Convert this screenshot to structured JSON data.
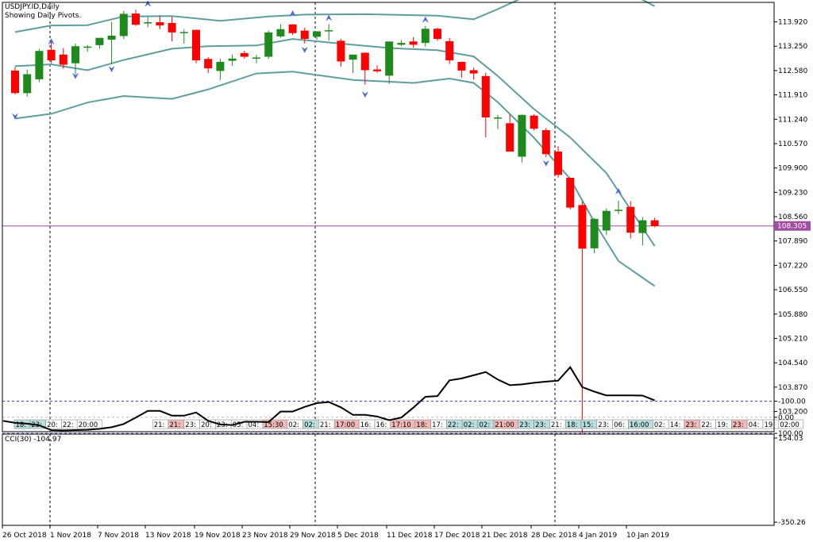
{
  "chart_title": "USDJPY.ID,Daily",
  "chart_subtitle": "Showing Daily Pivots.",
  "colors": {
    "up": "#1e8a1e",
    "down": "#ff0000",
    "band": "#5f9ea0",
    "price_line": "#a04ca0",
    "cci_level": "#3333cc",
    "fractal": "#4169e1"
  },
  "chart_data": [
    {
      "type": "candlestick",
      "symbol": "USDJPY.ID",
      "timeframe": "Daily",
      "ylim": [
        102.6,
        114.4
      ],
      "y_ticks": [
        "113.920",
        "113.250",
        "112.580",
        "111.910",
        "111.240",
        "110.570",
        "109.900",
        "109.230",
        "108.560",
        "107.890",
        "107.220",
        "106.550",
        "105.880",
        "105.210",
        "104.540",
        "103.870",
        "103.200"
      ],
      "current_price": "108.305",
      "x_labels": [
        "26 Oct 2018",
        "1 Nov 2018",
        "7 Nov 2018",
        "13 Nov 2018",
        "19 Nov 2018",
        "23 Nov 2018",
        "29 Nov 2018",
        "5 Dec 2018",
        "11 Dec 2018",
        "17 Dec 2018",
        "21 Dec 2018",
        "28 Dec 2018",
        "4 Jan 2019",
        "10 Jan 2019"
      ],
      "candles": [
        {
          "o": 112.58,
          "h": 112.68,
          "l": 111.92,
          "c": 111.96
        },
        {
          "o": 111.96,
          "h": 112.61,
          "l": 111.86,
          "c": 112.48
        },
        {
          "o": 112.34,
          "h": 113.18,
          "l": 112.26,
          "c": 113.12
        },
        {
          "o": 113.15,
          "h": 113.36,
          "l": 112.78,
          "c": 112.86
        },
        {
          "o": 113.02,
          "h": 113.2,
          "l": 112.63,
          "c": 112.74
        },
        {
          "o": 112.78,
          "h": 113.32,
          "l": 112.48,
          "c": 113.25
        },
        {
          "o": 113.22,
          "h": 113.28,
          "l": 113.1,
          "c": 113.24
        },
        {
          "o": 113.28,
          "h": 113.48,
          "l": 113.18,
          "c": 113.48
        },
        {
          "o": 113.43,
          "h": 113.92,
          "l": 112.76,
          "c": 113.54
        },
        {
          "o": 113.53,
          "h": 114.22,
          "l": 113.45,
          "c": 114.14
        },
        {
          "o": 114.15,
          "h": 114.25,
          "l": 113.81,
          "c": 113.84
        },
        {
          "o": 113.91,
          "h": 114.05,
          "l": 113.77,
          "c": 113.91
        },
        {
          "o": 113.91,
          "h": 114.1,
          "l": 113.72,
          "c": 113.82
        },
        {
          "o": 113.89,
          "h": 114.06,
          "l": 113.38,
          "c": 113.63
        },
        {
          "o": 113.64,
          "h": 113.72,
          "l": 113.32,
          "c": 113.64
        },
        {
          "o": 113.7,
          "h": 113.7,
          "l": 112.78,
          "c": 112.86
        },
        {
          "o": 112.9,
          "h": 112.95,
          "l": 112.51,
          "c": 112.64
        },
        {
          "o": 112.57,
          "h": 112.91,
          "l": 112.32,
          "c": 112.82
        },
        {
          "o": 112.85,
          "h": 113.02,
          "l": 112.71,
          "c": 112.91
        },
        {
          "o": 113.06,
          "h": 113.12,
          "l": 112.91,
          "c": 112.96
        },
        {
          "o": 112.94,
          "h": 113.01,
          "l": 112.78,
          "c": 112.94
        },
        {
          "o": 112.96,
          "h": 113.68,
          "l": 112.9,
          "c": 113.63
        },
        {
          "o": 113.52,
          "h": 113.86,
          "l": 113.48,
          "c": 113.72
        },
        {
          "o": 113.85,
          "h": 113.85,
          "l": 113.56,
          "c": 113.61
        },
        {
          "o": 113.68,
          "h": 113.76,
          "l": 113.32,
          "c": 113.45
        },
        {
          "o": 113.51,
          "h": 113.66,
          "l": 113.43,
          "c": 113.66
        },
        {
          "o": 113.69,
          "h": 113.86,
          "l": 113.4,
          "c": 113.69
        },
        {
          "o": 113.4,
          "h": 113.45,
          "l": 112.69,
          "c": 112.83
        },
        {
          "o": 112.88,
          "h": 112.96,
          "l": 112.51,
          "c": 113.02
        },
        {
          "o": 113.07,
          "h": 113.08,
          "l": 112.19,
          "c": 112.59
        },
        {
          "o": 112.61,
          "h": 112.72,
          "l": 112.52,
          "c": 112.56
        },
        {
          "o": 112.44,
          "h": 113.33,
          "l": 112.21,
          "c": 113.38
        },
        {
          "o": 113.29,
          "h": 113.42,
          "l": 113.25,
          "c": 113.34
        },
        {
          "o": 113.38,
          "h": 113.5,
          "l": 113.21,
          "c": 113.29
        },
        {
          "o": 113.34,
          "h": 113.81,
          "l": 113.24,
          "c": 113.73
        },
        {
          "o": 113.73,
          "h": 113.76,
          "l": 113.4,
          "c": 113.45
        },
        {
          "o": 113.39,
          "h": 113.48,
          "l": 112.76,
          "c": 112.86
        },
        {
          "o": 112.82,
          "h": 112.82,
          "l": 112.38,
          "c": 112.58
        },
        {
          "o": 112.59,
          "h": 112.66,
          "l": 112.33,
          "c": 112.5
        },
        {
          "o": 112.43,
          "h": 112.52,
          "l": 110.74,
          "c": 111.29
        },
        {
          "o": 111.29,
          "h": 111.36,
          "l": 110.97,
          "c": 111.29
        },
        {
          "o": 111.13,
          "h": 111.37,
          "l": 110.38,
          "c": 110.35
        },
        {
          "o": 110.21,
          "h": 111.37,
          "l": 110.05,
          "c": 111.36
        },
        {
          "o": 111.34,
          "h": 111.38,
          "l": 110.93,
          "c": 110.98
        },
        {
          "o": 110.94,
          "h": 111.0,
          "l": 110.2,
          "c": 110.28
        },
        {
          "o": 110.35,
          "h": 110.5,
          "l": 109.63,
          "c": 109.71
        },
        {
          "o": 109.63,
          "h": 109.64,
          "l": 108.76,
          "c": 108.81
        },
        {
          "o": 108.88,
          "h": 108.98,
          "l": 102.6,
          "c": 107.68
        },
        {
          "o": 107.69,
          "h": 108.52,
          "l": 107.55,
          "c": 108.5
        },
        {
          "o": 108.18,
          "h": 108.79,
          "l": 108.05,
          "c": 108.72
        },
        {
          "o": 108.75,
          "h": 109.0,
          "l": 108.63,
          "c": 108.75
        },
        {
          "o": 108.83,
          "h": 108.99,
          "l": 107.96,
          "c": 108.12
        },
        {
          "o": 108.11,
          "h": 108.55,
          "l": 107.77,
          "c": 108.46
        },
        {
          "o": 108.46,
          "h": 108.53,
          "l": 108.27,
          "c": 108.3
        }
      ],
      "bollinger": {
        "upper": [
          [
            0,
            113.64
          ],
          [
            3,
            113.82
          ],
          [
            6,
            113.83
          ],
          [
            9,
            114.07
          ],
          [
            13,
            114.08
          ],
          [
            17,
            113.95
          ],
          [
            21,
            114.07
          ],
          [
            24,
            114.12
          ],
          [
            29,
            114.13
          ],
          [
            35,
            114.09
          ],
          [
            38,
            113.99
          ],
          [
            40,
            114.27
          ],
          [
            44,
            114.88
          ],
          [
            50,
            114.88
          ],
          [
            53,
            114.35
          ]
        ],
        "middle": [
          [
            0,
            112.7
          ],
          [
            3,
            112.75
          ],
          [
            6,
            112.59
          ],
          [
            9,
            112.87
          ],
          [
            13,
            113.18
          ],
          [
            16,
            113.25
          ],
          [
            20,
            113.27
          ],
          [
            23,
            113.45
          ],
          [
            27,
            113.32
          ],
          [
            31,
            113.2
          ],
          [
            35,
            113.14
          ],
          [
            38,
            112.97
          ],
          [
            40,
            112.43
          ],
          [
            43,
            111.52
          ],
          [
            46,
            110.74
          ],
          [
            49,
            109.76
          ],
          [
            53,
            107.75
          ]
        ],
        "lower": [
          [
            0,
            111.26
          ],
          [
            3,
            111.39
          ],
          [
            6,
            111.7
          ],
          [
            9,
            111.88
          ],
          [
            13,
            111.8
          ],
          [
            16,
            112.06
          ],
          [
            20,
            112.5
          ],
          [
            23,
            112.55
          ],
          [
            28,
            112.32
          ],
          [
            33,
            112.24
          ],
          [
            36,
            112.36
          ],
          [
            38,
            112.24
          ],
          [
            40,
            111.71
          ],
          [
            43,
            110.73
          ],
          [
            46,
            109.6
          ],
          [
            48,
            108.41
          ],
          [
            50,
            107.34
          ],
          [
            53,
            106.65
          ]
        ]
      },
      "fractals_up": [
        {
          "i": 3,
          "y": 113.38
        },
        {
          "i": 11,
          "y": 114.42
        },
        {
          "i": 23,
          "y": 114.15
        },
        {
          "i": 26,
          "y": 114.03
        },
        {
          "i": 34,
          "y": 113.98
        },
        {
          "i": 50,
          "y": 109.26
        }
      ],
      "fractals_down": [
        {
          "i": 0,
          "y": 111.32
        },
        {
          "i": 5,
          "y": 112.43
        },
        {
          "i": 8,
          "y": 112.62
        },
        {
          "i": 24,
          "y": 113.15
        },
        {
          "i": 29,
          "y": 111.92
        },
        {
          "i": 44,
          "y": 110.03
        }
      ],
      "pivot_times": [
        {
          "label": "18:",
          "hl": "teal"
        },
        {
          "label": "23:",
          "hl": "teal"
        },
        {
          "label": "20:",
          "hl": "none"
        },
        {
          "label": "22:",
          "hl": "none"
        },
        {
          "label": "20:00",
          "hl": "none"
        },
        {
          "label": "21:",
          "hl": "none"
        },
        {
          "label": "21:",
          "hl": "red"
        },
        {
          "label": "23:",
          "hl": "none"
        },
        {
          "label": "20:",
          "hl": "none"
        },
        {
          "label": "23:",
          "hl": "none"
        },
        {
          "label": "05:",
          "hl": "none"
        },
        {
          "label": "04:",
          "hl": "none"
        },
        {
          "label": "15:30",
          "hl": "red"
        },
        {
          "label": "02:",
          "hl": "none"
        },
        {
          "label": "02:",
          "hl": "teal"
        },
        {
          "label": "21:",
          "hl": "none"
        },
        {
          "label": "17:00",
          "hl": "red"
        },
        {
          "label": "16:",
          "hl": "none"
        },
        {
          "label": "16:",
          "hl": "none"
        },
        {
          "label": "17:10",
          "hl": "red"
        },
        {
          "label": "18:",
          "hl": "red"
        },
        {
          "label": "17:",
          "hl": "none"
        },
        {
          "label": "22:",
          "hl": "teal"
        },
        {
          "label": "02:",
          "hl": "teal"
        },
        {
          "label": "02:",
          "hl": "teal"
        },
        {
          "label": "21:00",
          "hl": "red"
        },
        {
          "label": "23:",
          "hl": "teal"
        },
        {
          "label": "23:",
          "hl": "teal"
        },
        {
          "label": "21:",
          "hl": "none"
        },
        {
          "label": "18:",
          "hl": "teal"
        },
        {
          "label": "15:",
          "hl": "teal"
        },
        {
          "label": "23:",
          "hl": "none"
        },
        {
          "label": "06:",
          "hl": "none"
        },
        {
          "label": "16:00",
          "hl": "teal"
        },
        {
          "label": "02:",
          "hl": "none"
        },
        {
          "label": "14:",
          "hl": "none"
        },
        {
          "label": "23:",
          "hl": "red"
        },
        {
          "label": "22:",
          "hl": "none"
        },
        {
          "label": "19:",
          "hl": "none"
        },
        {
          "label": "23:",
          "hl": "red"
        },
        {
          "label": "04:",
          "hl": "none"
        },
        {
          "label": "19:",
          "hl": "none"
        },
        {
          "label": "02:00",
          "hl": "none"
        }
      ]
    },
    {
      "type": "line",
      "name": "CCI(30) -104.97",
      "ylim": [
        -350.26,
        154.03
      ],
      "y_ticks": [
        "154.03",
        "100.00",
        "0.00",
        "-100.00",
        "-350.26"
      ],
      "levels": [
        100,
        0,
        -100
      ],
      "values": [
        -94,
        -35,
        2,
        20,
        -5,
        10,
        22,
        35,
        40,
        50,
        80,
        82,
        80,
        78,
        72,
        62,
        42,
        2,
        -40,
        -40,
        -10,
        -10,
        -30,
        22,
        45,
        48,
        28,
        28,
        30,
        -36,
        -36,
        -65,
        -88,
        -95,
        -62,
        -15,
        -15,
        -5,
        18,
        2,
        -60,
        -128,
        -132,
        -230,
        -242,
        -262,
        -282,
        -235,
        -200,
        -205,
        -215,
        -222,
        -228,
        -312,
        -188,
        -160,
        -136,
        -136,
        -136,
        -135,
        -105
      ]
    }
  ]
}
